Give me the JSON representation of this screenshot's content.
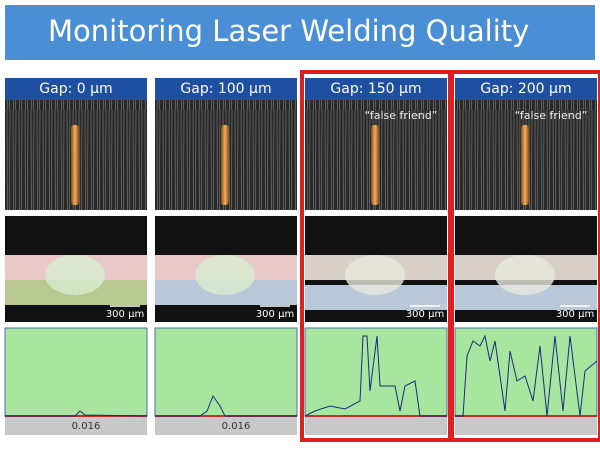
{
  "title": "Monitoring Laser Welding Quality",
  "panels": [
    {
      "gap": "Gap: 0 µm",
      "scale": "300 µm",
      "plot_label": "0.016",
      "flagged": false
    },
    {
      "gap": "Gap: 100 µm",
      "scale": "300 µm",
      "plot_label": "0.016",
      "flagged": false
    },
    {
      "gap": "Gap: 150 µm",
      "note": "“false friend”",
      "scale": "300 µm",
      "flagged": true
    },
    {
      "gap": "Gap: 200 µm",
      "note": "“false friend”",
      "scale": "300 µm",
      "flagged": true
    }
  ]
}
